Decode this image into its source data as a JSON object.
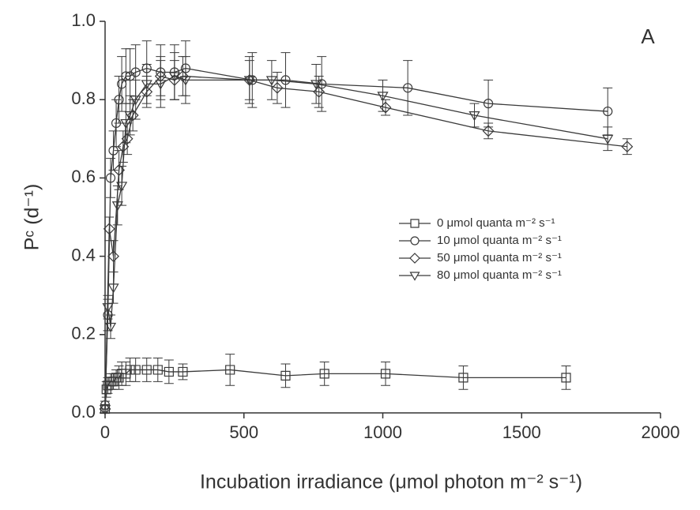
{
  "chart_data": {
    "type": "line",
    "title": "A",
    "x_label": "Incubation irradiance (μmol photon m⁻² s⁻¹)",
    "y_label": "Pᶜ (d⁻¹)",
    "xlim": [
      0,
      2000
    ],
    "xticks": [
      0,
      500,
      1000,
      1500,
      2000
    ],
    "ylim": [
      0,
      1
    ],
    "yticks": [
      {
        "value": 0,
        "label": "0.0"
      },
      0.2,
      0.4,
      0.6,
      0.8,
      {
        "value": 1,
        "label": "1.0"
      }
    ],
    "legend": "center-right",
    "series": [
      {
        "name": "0 μmol quanta m⁻² s⁻¹",
        "color": "#3a3a3a",
        "marker": "square",
        "x": [
          0,
          5,
          10,
          20,
          30,
          40,
          50,
          60,
          75,
          90,
          110,
          150,
          190,
          230,
          280,
          450,
          650,
          790,
          1010,
          1290,
          1660
        ],
        "values": [
          0.01,
          0.06,
          0.07,
          0.08,
          0.08,
          0.09,
          0.09,
          0.1,
          0.1,
          0.11,
          0.11,
          0.11,
          0.11,
          0.105,
          0.105,
          0.11,
          0.095,
          0.1,
          0.1,
          0.09,
          0.09
        ],
        "errors": [
          0.01,
          0.02,
          0.02,
          0.02,
          0.02,
          0.02,
          0.03,
          0.03,
          0.03,
          0.03,
          0.03,
          0.03,
          0.03,
          0.03,
          0.02,
          0.04,
          0.03,
          0.03,
          0.03,
          0.03,
          0.03
        ]
      },
      {
        "name": "10 μmol quanta m⁻² s⁻¹",
        "color": "#3a3a3a",
        "marker": "circle",
        "x": [
          0,
          10,
          20,
          30,
          40,
          50,
          60,
          75,
          90,
          110,
          150,
          200,
          250,
          290,
          530,
          650,
          780,
          1090,
          1380,
          1810
        ],
        "values": [
          0.02,
          0.25,
          0.6,
          0.67,
          0.74,
          0.8,
          0.84,
          0.86,
          0.86,
          0.87,
          0.88,
          0.87,
          0.87,
          0.88,
          0.85,
          0.85,
          0.84,
          0.83,
          0.79,
          0.77
        ],
        "errors": [
          0.01,
          0.04,
          0.05,
          0.05,
          0.06,
          0.06,
          0.07,
          0.07,
          0.07,
          0.07,
          0.07,
          0.07,
          0.07,
          0.07,
          0.07,
          0.07,
          0.07,
          0.07,
          0.06,
          0.06
        ]
      },
      {
        "name": "50 μmol quanta m⁻² s⁻¹",
        "color": "#3a3a3a",
        "marker": "diamond",
        "x": [
          0,
          15,
          30,
          50,
          65,
          80,
          100,
          150,
          200,
          250,
          280,
          520,
          620,
          770,
          1010,
          1380,
          1880
        ],
        "values": [
          0.01,
          0.47,
          0.4,
          0.62,
          0.68,
          0.7,
          0.76,
          0.82,
          0.86,
          0.85,
          0.86,
          0.85,
          0.83,
          0.82,
          0.78,
          0.72,
          0.68
        ],
        "errors": [
          0.01,
          0.03,
          0.04,
          0.05,
          0.04,
          0.04,
          0.04,
          0.04,
          0.05,
          0.05,
          0.05,
          0.05,
          0.04,
          0.04,
          0.02,
          0.02,
          0.02
        ]
      },
      {
        "name": "80 μmol quanta m⁻² s⁻¹",
        "color": "#3a3a3a",
        "marker": "triangle-down",
        "x": [
          0,
          10,
          20,
          30,
          45,
          60,
          75,
          90,
          110,
          150,
          200,
          250,
          290,
          520,
          600,
          760,
          1000,
          1330,
          1810
        ],
        "values": [
          0.01,
          0.27,
          0.22,
          0.32,
          0.53,
          0.58,
          0.74,
          0.76,
          0.8,
          0.84,
          0.84,
          0.86,
          0.85,
          0.85,
          0.85,
          0.84,
          0.81,
          0.76,
          0.7
        ],
        "errors": [
          0.01,
          0.03,
          0.03,
          0.04,
          0.05,
          0.05,
          0.05,
          0.05,
          0.05,
          0.05,
          0.06,
          0.06,
          0.06,
          0.06,
          0.05,
          0.05,
          0.04,
          0.03,
          0.03
        ]
      }
    ]
  }
}
